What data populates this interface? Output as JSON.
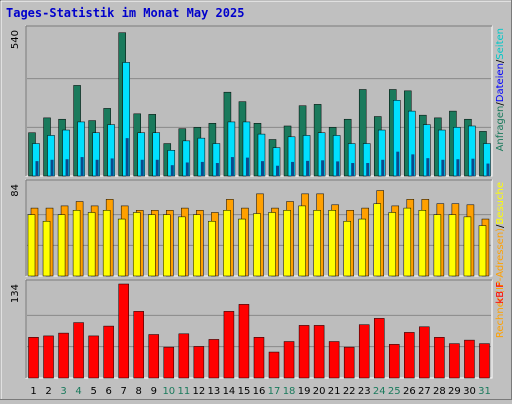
{
  "title": "Tages-Statistik im Monat May 2025",
  "colors": {
    "background": "#c0c0c0",
    "plot_bg": "#bdbdbd",
    "title": "#0000cc",
    "pages": "#1a7a5c",
    "files": "#00e0ff",
    "hits_green": "#1a7a5c",
    "visits": "#ffa000",
    "sites": "#ffff00",
    "kbytes": "#ff0000",
    "weekend_day": "#1a7a5c",
    "weekday": "#000000"
  },
  "chart_data": [
    {
      "type": "bar",
      "panel": "top",
      "ylabel_max": "540",
      "legend": {
        "text_1": "Seiten",
        "sep_1": "/",
        "text_2": "Dateien",
        "sep_2": "/",
        "text_3": "Anfragen",
        "position": "right-vertical"
      },
      "legend_words": [
        {
          "text": "Anfragen",
          "color": "#1a7a5c"
        },
        {
          "text": "/",
          "color": "#000000"
        },
        {
          "text": "Dateien",
          "color": "#0000ff"
        },
        {
          "text": "/",
          "color": "#000000"
        },
        {
          "text": "Seiten",
          "color": "#00c8c8"
        }
      ],
      "ylim": [
        0,
        540
      ],
      "categories": [
        "1",
        "2",
        "3",
        "4",
        "5",
        "6",
        "7",
        "8",
        "9",
        "10",
        "11",
        "12",
        "13",
        "14",
        "15",
        "16",
        "17",
        "18",
        "19",
        "20",
        "21",
        "22",
        "23",
        "24",
        "25",
        "26",
        "27",
        "28",
        "29",
        "30",
        "31"
      ],
      "series": [
        {
          "name": "Anfragen",
          "color": "#1a7a5c",
          "values": [
            160,
            215,
            210,
            335,
            205,
            250,
            530,
            230,
            228,
            120,
            175,
            180,
            195,
            310,
            275,
            195,
            135,
            185,
            260,
            265,
            180,
            210,
            320,
            220,
            320,
            315,
            225,
            215,
            240,
            210,
            165
          ]
        },
        {
          "name": "Dateien",
          "color": "#00e0ff",
          "values": [
            120,
            150,
            170,
            200,
            160,
            190,
            420,
            160,
            160,
            95,
            130,
            140,
            120,
            200,
            200,
            155,
            105,
            145,
            150,
            160,
            150,
            120,
            120,
            170,
            280,
            240,
            190,
            170,
            180,
            185,
            120
          ]
        },
        {
          "name": "Seiten",
          "color": "#00c8c8",
          "values": [
            55,
            60,
            62,
            70,
            60,
            65,
            140,
            60,
            60,
            40,
            50,
            52,
            48,
            70,
            68,
            55,
            38,
            52,
            56,
            58,
            54,
            48,
            48,
            60,
            90,
            80,
            66,
            60,
            62,
            64,
            46
          ]
        }
      ]
    },
    {
      "type": "bar",
      "panel": "middle",
      "ylabel_max": "84",
      "legend_words": [
        {
          "text": "Rechner (IP-Adressen)",
          "color": "#ffa000"
        },
        {
          "text": "/",
          "color": "#000000"
        },
        {
          "text": "Besuche",
          "color": "#ffff00"
        }
      ],
      "ylim": [
        0,
        84
      ],
      "categories": [
        "1",
        "2",
        "3",
        "4",
        "5",
        "6",
        "7",
        "8",
        "9",
        "10",
        "11",
        "12",
        "13",
        "14",
        "15",
        "16",
        "17",
        "18",
        "19",
        "20",
        "21",
        "22",
        "23",
        "24",
        "25",
        "26",
        "27",
        "28",
        "29",
        "30",
        "31"
      ],
      "series": [
        {
          "name": "Rechner (IP-Adressen)",
          "color": "#ffa000",
          "values": [
            62,
            62,
            64,
            68,
            64,
            70,
            64,
            60,
            60,
            60,
            62,
            60,
            58,
            70,
            62,
            75,
            62,
            68,
            75,
            75,
            65,
            60,
            62,
            78,
            64,
            70,
            70,
            66,
            66,
            65,
            52
          ]
        },
        {
          "name": "Besuche",
          "color": "#ffff00",
          "values": [
            56,
            50,
            56,
            60,
            58,
            60,
            52,
            58,
            56,
            56,
            54,
            56,
            50,
            60,
            52,
            57,
            58,
            60,
            64,
            60,
            60,
            50,
            52,
            66,
            58,
            62,
            60,
            56,
            56,
            54,
            46
          ]
        }
      ]
    },
    {
      "type": "bar",
      "panel": "bottom",
      "ylabel_max": "134",
      "legend_words": [
        {
          "text": "kB F",
          "color": "#ff0000"
        }
      ],
      "ylim": [
        0,
        134
      ],
      "categories": [
        "1",
        "2",
        "3",
        "4",
        "5",
        "6",
        "7",
        "8",
        "9",
        "10",
        "11",
        "12",
        "13",
        "14",
        "15",
        "16",
        "17",
        "18",
        "19",
        "20",
        "21",
        "22",
        "23",
        "24",
        "25",
        "26",
        "27",
        "28",
        "29",
        "30",
        "31"
      ],
      "series": [
        {
          "name": "kB F",
          "color": "#ff0000",
          "values": [
            58,
            60,
            64,
            79,
            60,
            74,
            134,
            95,
            62,
            44,
            63,
            45,
            55,
            95,
            105,
            58,
            37,
            52,
            75,
            75,
            52,
            44,
            76,
            85,
            48,
            65,
            73,
            58,
            49,
            54,
            49
          ]
        }
      ]
    }
  ],
  "day_labels": [
    "1",
    "2",
    "3",
    "4",
    "5",
    "6",
    "7",
    "8",
    "9",
    "10",
    "11",
    "12",
    "13",
    "14",
    "15",
    "16",
    "17",
    "18",
    "19",
    "20",
    "21",
    "22",
    "23",
    "24",
    "25",
    "26",
    "27",
    "28",
    "29",
    "30",
    "31"
  ],
  "weekend_days": [
    3,
    4,
    10,
    11,
    17,
    18,
    24,
    25,
    31
  ]
}
